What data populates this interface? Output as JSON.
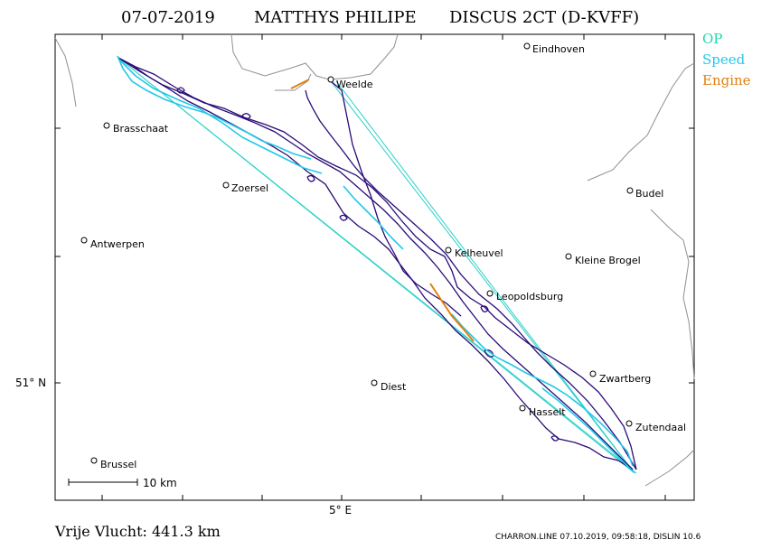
{
  "title": {
    "date": "07-07-2019",
    "pilot": "MATTHYS PHILIPE",
    "glider": "DISCUS 2CT (D-KVFF)"
  },
  "legend": [
    {
      "label": "OP",
      "color": "#22d8a8"
    },
    {
      "label": "Speed",
      "color": "#22c8e8"
    },
    {
      "label": "Engine",
      "color": "#e08010"
    }
  ],
  "colors": {
    "track": "#2a0a78",
    "speed": "#22c8e8",
    "op_legs": "#2ad0c8",
    "engine": "#e08010",
    "border": "#909090"
  },
  "places": [
    {
      "name": "Eindhoven"
    },
    {
      "name": "Weelde"
    },
    {
      "name": "Brasschaat"
    },
    {
      "name": "Zoersel"
    },
    {
      "name": "Budel"
    },
    {
      "name": "Antwerpen"
    },
    {
      "name": "Kelheuvel"
    },
    {
      "name": "Kleine Brogel"
    },
    {
      "name": "Leopoldsburg"
    },
    {
      "name": "Zwartberg"
    },
    {
      "name": "Diest"
    },
    {
      "name": "Hasselt"
    },
    {
      "name": "Zutendaal"
    },
    {
      "name": "Brussel"
    }
  ],
  "axes": {
    "lat_label": "51° N",
    "lon_label": "5° E"
  },
  "scale_bar": {
    "label": "10 km"
  },
  "footer": {
    "distance": "Vrije Vlucht:  441.3 km",
    "credit": "CHARRON.LINE 07.10.2019, 09:58:18, DISLIN 10.6"
  }
}
